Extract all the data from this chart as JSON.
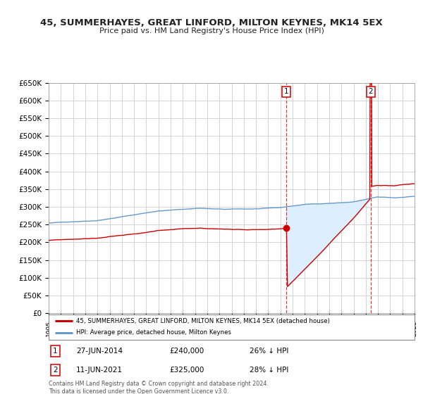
{
  "title": "45, SUMMERHAYES, GREAT LINFORD, MILTON KEYNES, MK14 5EX",
  "subtitle": "Price paid vs. HM Land Registry's House Price Index (HPI)",
  "legend_line1": "45, SUMMERHAYES, GREAT LINFORD, MILTON KEYNES, MK14 5EX (detached house)",
  "legend_line2": "HPI: Average price, detached house, Milton Keynes",
  "note1_date": "27-JUN-2014",
  "note1_price": "£240,000",
  "note1_hpi": "26% ↓ HPI",
  "note2_date": "11-JUN-2021",
  "note2_price": "£325,000",
  "note2_hpi": "28% ↓ HPI",
  "footer": "Contains HM Land Registry data © Crown copyright and database right 2024.\nThis data is licensed under the Open Government Licence v3.0.",
  "sale1_year": 2014.5,
  "sale1_value": 240000,
  "sale2_year": 2021.45,
  "sale2_value": 325000,
  "xmin": 1995,
  "xmax": 2025,
  "ymin": 0,
  "ymax": 650000,
  "red_color": "#cc0000",
  "blue_color": "#6699cc",
  "fill_color": "#ddeeff",
  "grid_color": "#cccccc",
  "title_color": "#222222",
  "bg_color": "#ffffff"
}
